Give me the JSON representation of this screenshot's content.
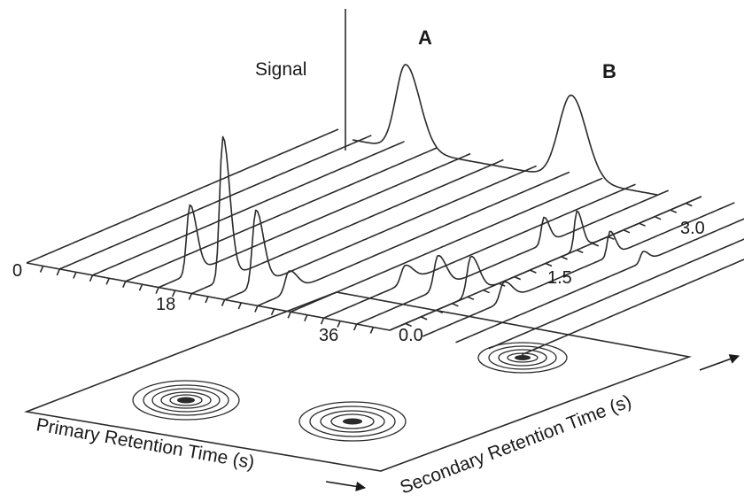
{
  "labels": {
    "signal": "Signal",
    "peak_a": "A",
    "peak_b": "B",
    "primary_axis": "Primary Retention Time (s)",
    "secondary_axis": "Secondary Retention Time (s)"
  },
  "primary_ticks": [
    "0",
    "18",
    "36"
  ],
  "secondary_ticks": [
    "0.0",
    "1.5",
    "3.0"
  ],
  "colors": {
    "ink": "#2a2a2a",
    "background": "#ffffff"
  }
}
